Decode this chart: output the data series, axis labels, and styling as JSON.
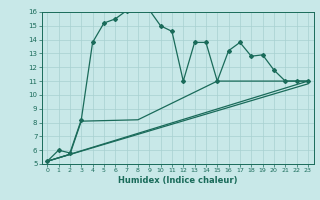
{
  "xlabel": "Humidex (Indice chaleur)",
  "bg_color": "#c8e8e8",
  "line_color": "#1a6b5a",
  "grid_color": "#a8d0d0",
  "xlim": [
    -0.5,
    23.5
  ],
  "ylim": [
    5,
    16
  ],
  "xticks": [
    0,
    1,
    2,
    3,
    4,
    5,
    6,
    7,
    8,
    9,
    10,
    11,
    12,
    13,
    14,
    15,
    16,
    17,
    18,
    19,
    20,
    21,
    22,
    23
  ],
  "yticks": [
    5,
    6,
    7,
    8,
    9,
    10,
    11,
    12,
    13,
    14,
    15,
    16
  ],
  "line1_x": [
    0,
    1,
    2,
    3,
    4,
    5,
    6,
    7,
    8,
    9,
    10,
    11,
    12,
    13,
    14,
    15,
    16,
    17,
    18,
    19,
    20,
    21,
    22,
    23
  ],
  "line1_y": [
    5.2,
    6.0,
    5.8,
    8.2,
    13.8,
    15.2,
    15.5,
    16.1,
    16.2,
    16.15,
    15.0,
    14.6,
    11.0,
    13.8,
    13.8,
    11.0,
    13.2,
    13.8,
    12.8,
    12.9,
    11.8,
    11.0,
    11.0,
    11.0
  ],
  "line2_x": [
    0,
    2,
    3,
    8,
    15,
    23
  ],
  "line2_y": [
    5.2,
    5.7,
    8.1,
    8.2,
    11.0,
    11.0
  ],
  "line3_x": [
    0,
    23
  ],
  "line3_y": [
    5.2,
    11.0
  ],
  "line4_x": [
    0,
    23
  ],
  "line4_y": [
    5.2,
    10.8
  ]
}
